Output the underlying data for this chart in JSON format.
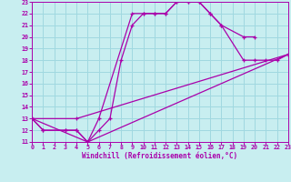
{
  "xlabel": "Windchill (Refroidissement éolien,°C)",
  "bg_color": "#c8eef0",
  "grid_color": "#a0d8e0",
  "line_color": "#aa00aa",
  "xmin": 0,
  "xmax": 23,
  "ymin": 11,
  "ymax": 23,
  "series1_x": [
    0,
    1,
    3,
    4,
    5,
    6,
    7,
    8,
    9,
    10,
    11,
    12,
    13,
    14,
    15,
    16,
    17,
    19,
    20
  ],
  "series1_y": [
    13,
    12,
    12,
    12,
    11,
    12,
    13,
    18,
    21,
    22,
    22,
    22,
    23,
    23,
    23,
    22,
    21,
    20,
    20
  ],
  "series2_x": [
    0,
    1,
    3,
    4,
    5,
    6,
    9,
    10,
    11,
    12,
    13,
    14,
    15,
    16,
    17,
    19,
    20,
    21,
    22,
    23
  ],
  "series2_y": [
    13,
    12,
    12,
    12,
    11,
    13,
    22,
    22,
    22,
    22,
    23,
    23,
    23,
    22,
    21,
    18,
    18,
    18,
    18,
    18.5
  ],
  "series3_x": [
    0,
    4,
    23
  ],
  "series3_y": [
    13,
    13,
    18.5
  ],
  "series4_x": [
    0,
    5,
    23
  ],
  "series4_y": [
    13,
    11,
    18.5
  ],
  "yticks": [
    11,
    12,
    13,
    14,
    15,
    16,
    17,
    18,
    19,
    20,
    21,
    22,
    23
  ],
  "xticks": [
    0,
    1,
    2,
    3,
    4,
    5,
    6,
    7,
    8,
    9,
    10,
    11,
    12,
    13,
    14,
    15,
    16,
    17,
    18,
    19,
    20,
    21,
    22,
    23
  ]
}
